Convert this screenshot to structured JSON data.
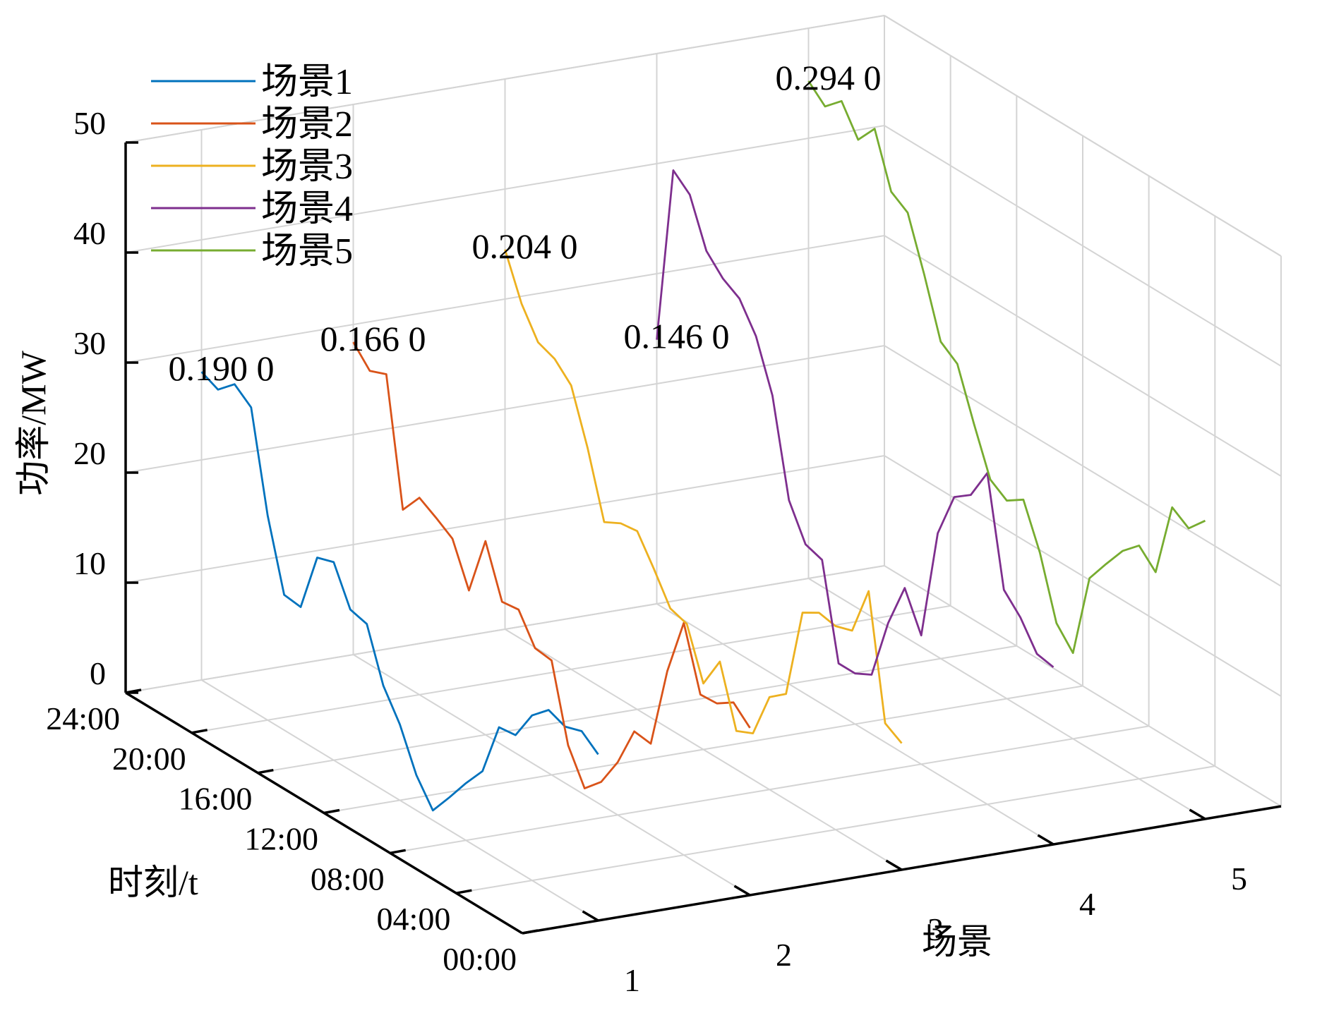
{
  "chart_data": {
    "type": "line",
    "view": "3d-waterfall",
    "xlabel": "场景",
    "ylabel": "时刻/t",
    "zlabel": "功率/MW",
    "x_ticks": [
      "1",
      "2",
      "3",
      "4",
      "5"
    ],
    "y_ticks": [
      "00:00",
      "04:00",
      "08:00",
      "12:00",
      "16:00",
      "20:00",
      "24:00"
    ],
    "z_ticks": [
      "0",
      "10",
      "20",
      "30",
      "40",
      "50"
    ],
    "xlim": [
      0.5,
      5.5
    ],
    "ylim": [
      0,
      24
    ],
    "zlim": [
      0,
      50
    ],
    "grid": true,
    "legend_position": "top-left",
    "series": [
      {
        "name": "场景1",
        "color": "#0072BD",
        "scenario": 1,
        "probability_label": "0.190 0",
        "time_hours": [
          0,
          1,
          2,
          3,
          4,
          5,
          6,
          7,
          8,
          9,
          10,
          11,
          12,
          13,
          14,
          15,
          16,
          17,
          18,
          19,
          20,
          21,
          22,
          23,
          24
        ],
        "power_mw": [
          15.1,
          16.3,
          15.8,
          16.4,
          15.0,
          12.3,
          12.1,
          7.2,
          5.2,
          3.0,
          0.9,
          3.2,
          6.9,
          9.5,
          14.2,
          14.6,
          18.0,
          17.5,
          12.1,
          12.3,
          18.6,
          27.5,
          28.7,
          27.3,
          28.0
        ]
      },
      {
        "name": "场景2",
        "color": "#D95319",
        "scenario": 2,
        "probability_label": "0.166 0",
        "time_hours": [
          0,
          1,
          2,
          3,
          4,
          5,
          6,
          7,
          8,
          9,
          10,
          11,
          12,
          13,
          14,
          15,
          16,
          17,
          18,
          19,
          20,
          21,
          22,
          23,
          24
        ],
        "power_mw": [
          15.2,
          16.6,
          15.6,
          15.5,
          21.1,
          15.8,
          8.3,
          8.5,
          4.8,
          2.1,
          0.6,
          3.6,
          10.4,
          10.6,
          13.2,
          13.0,
          17.6,
          12.2,
          16.0,
          17.0,
          17.9,
          15.9,
          27.3,
          26.7,
          28.4
        ]
      },
      {
        "name": "场景3",
        "color": "#EDB120",
        "scenario": 3,
        "probability_label": "0.204 0",
        "time_hours": [
          0,
          1,
          2,
          3,
          4,
          5,
          6,
          7,
          8,
          9,
          10,
          11,
          12,
          13,
          14,
          15,
          16,
          17,
          18,
          19,
          20,
          21,
          22,
          23,
          24
        ],
        "power_mw": [
          11.5,
          12.4,
          23.5,
          19.0,
          18.5,
          18.8,
          17.9,
          9.6,
          8.4,
          4.2,
          3.5,
          8.9,
          6.0,
          10.5,
          11.0,
          13.7,
          16.2,
          16.0,
          15.2,
          21.0,
          25.8,
          27.3,
          27.9,
          30.5,
          34.5
        ]
      },
      {
        "name": "场景4",
        "color": "#7E2F8E",
        "scenario": 4,
        "probability_label": "0.146 0",
        "time_hours": [
          0,
          1,
          2,
          3,
          4,
          5,
          6,
          7,
          8,
          9,
          10,
          11,
          12,
          13,
          14,
          15,
          16,
          17,
          18,
          19,
          20,
          21,
          22,
          23,
          24
        ],
        "power_mw": [
          16.1,
          16.4,
          18.8,
          20.4,
          30.1,
          27.2,
          26.1,
          21.9,
          11.7,
          15.1,
          11.0,
          5.4,
          4.6,
          4.6,
          13.1,
          13.6,
          16.7,
          25.3,
          29.8,
          32.3,
          33.2,
          34.8,
          39.0,
          40.3,
          24.0
        ]
      },
      {
        "name": "场景5",
        "color": "#77AC30",
        "scenario": 5,
        "probability_label": "0.294 0",
        "time_hours": [
          0,
          1,
          2,
          3,
          4,
          5,
          6,
          7,
          8,
          9,
          10,
          11,
          12,
          13,
          14,
          15,
          16,
          17,
          18,
          19,
          20,
          21,
          22,
          23,
          24
        ],
        "power_mw": [
          27.1,
          25.5,
          26.5,
          19.7,
          21.2,
          19.8,
          17.7,
          15.5,
          7.8,
          9.6,
          15.1,
          19.0,
          18.0,
          19.0,
          23.2,
          27.7,
          28.8,
          34.0,
          38.7,
          39.7,
          44.5,
          42.6,
          45.2,
          43.8,
          45.2
        ]
      }
    ]
  }
}
